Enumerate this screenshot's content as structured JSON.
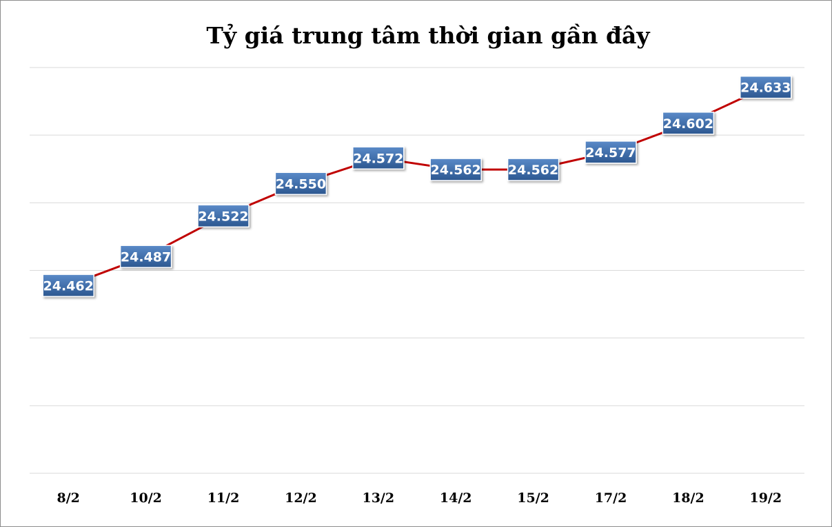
{
  "chart_data": {
    "type": "line",
    "title": "Tỷ giá trung tâm thời gian gần đây",
    "xlabel": "",
    "ylabel": "",
    "categories": [
      "8/2",
      "10/2",
      "11/2",
      "12/2",
      "13/2",
      "14/2",
      "15/2",
      "17/2",
      "18/2",
      "19/2"
    ],
    "values": [
      24462,
      24487,
      24522,
      24550,
      24572,
      24562,
      24562,
      24577,
      24602,
      24633
    ],
    "data_labels": [
      "24.462",
      "24.487",
      "24.522",
      "24.550",
      "24.572",
      "24.562",
      "24.562",
      "24.577",
      "24.602",
      "24.633"
    ],
    "ylim": [
      24300,
      24650
    ],
    "grid": true,
    "y_tick_labels_visible": false,
    "legend": "none",
    "colors": {
      "line": "#c00000",
      "label_fill_top": "#4f7fbd",
      "label_fill_bottom": "#2f5a93",
      "grid": "#d9d9d9"
    }
  }
}
